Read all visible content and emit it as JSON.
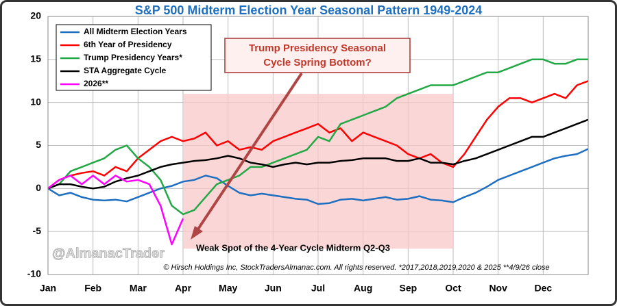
{
  "chart_data": {
    "type": "line",
    "title": "S&P 500 Midterm Election Year Seasonal Pattern 1949-2024",
    "x": [
      0,
      0.25,
      0.5,
      0.75,
      1,
      1.25,
      1.5,
      1.75,
      2,
      2.25,
      2.5,
      2.75,
      3,
      3.25,
      3.5,
      3.75,
      4,
      4.25,
      4.5,
      4.75,
      5,
      5.25,
      5.5,
      5.75,
      6,
      6.25,
      6.5,
      6.75,
      7,
      7.25,
      7.5,
      7.75,
      8,
      8.25,
      8.5,
      8.75,
      9,
      9.25,
      9.5,
      9.75,
      10,
      10.25,
      10.5,
      10.75,
      11,
      11.25,
      11.5,
      11.75,
      12
    ],
    "xlim": [
      0,
      12
    ],
    "xticks": [
      {
        "value": 0,
        "label": "Jan"
      },
      {
        "value": 1,
        "label": "Feb"
      },
      {
        "value": 2,
        "label": "Mar"
      },
      {
        "value": 3,
        "label": "Apr"
      },
      {
        "value": 4,
        "label": "May"
      },
      {
        "value": 5,
        "label": "Jun"
      },
      {
        "value": 6,
        "label": "Jul"
      },
      {
        "value": 7,
        "label": "Aug"
      },
      {
        "value": 8,
        "label": "Sep"
      },
      {
        "value": 9,
        "label": "Oct"
      },
      {
        "value": 10,
        "label": "Nov"
      },
      {
        "value": 11,
        "label": "Dec"
      }
    ],
    "ylim": [
      -10,
      20
    ],
    "yticks": [
      -10,
      -5,
      0,
      5,
      10,
      15,
      20
    ],
    "grid": true,
    "legend": "upper left",
    "series": [
      {
        "name": "All Midterm Election Years",
        "color": "#1f6fc0",
        "values": [
          0,
          -0.8,
          -0.5,
          -1.0,
          -1.3,
          -1.4,
          -1.3,
          -1.5,
          -1.0,
          -0.5,
          0.0,
          0.3,
          0.8,
          1.0,
          1.5,
          1.2,
          0.3,
          -0.5,
          -0.8,
          -0.6,
          -0.8,
          -1.0,
          -1.2,
          -1.3,
          -1.8,
          -1.7,
          -1.3,
          -1.2,
          -1.4,
          -1.2,
          -1.0,
          -1.3,
          -1.2,
          -0.9,
          -1.3,
          -1.4,
          -1.6,
          -1.0,
          -0.5,
          0.2,
          1.0,
          1.5,
          2.0,
          2.5,
          3.0,
          3.5,
          3.8,
          4.0,
          4.6
        ]
      },
      {
        "name": "6th Year of Presidency",
        "color": "#ff0000",
        "values": [
          0,
          1.0,
          1.5,
          1.8,
          2.0,
          1.5,
          2.5,
          2.0,
          3.5,
          4.5,
          5.5,
          6.0,
          5.5,
          5.8,
          6.5,
          5.0,
          5.5,
          4.5,
          4.8,
          4.5,
          5.5,
          6.0,
          6.5,
          7.0,
          7.5,
          6.5,
          7.0,
          5.5,
          6.5,
          6.0,
          5.5,
          5.0,
          4.0,
          3.5,
          4.0,
          3.0,
          2.5,
          4.0,
          6.0,
          8.0,
          9.5,
          10.5,
          10.5,
          10.0,
          10.5,
          11.0,
          10.5,
          12.0,
          12.5
        ]
      },
      {
        "name": "Trump Presidency Years*",
        "color": "#22a844",
        "values": [
          0,
          0.5,
          2.0,
          2.5,
          3.0,
          3.5,
          4.5,
          5.0,
          3.5,
          2.5,
          1.0,
          -2.0,
          -3.0,
          -2.5,
          -1.0,
          0.5,
          1.0,
          1.5,
          2.5,
          2.5,
          3.0,
          3.5,
          4.0,
          4.5,
          6.0,
          5.5,
          7.5,
          8.0,
          8.5,
          9.0,
          9.5,
          10.5,
          11.0,
          11.5,
          12.0,
          12.0,
          12.0,
          12.5,
          13.0,
          13.5,
          13.5,
          14.0,
          14.5,
          15.0,
          15.0,
          14.5,
          14.5,
          15.0,
          15.0
        ]
      },
      {
        "name": "STA Aggregate Cycle",
        "color": "#000000",
        "values": [
          0,
          0.5,
          0.5,
          0.2,
          0.0,
          0.2,
          0.8,
          1.2,
          1.5,
          2.0,
          2.5,
          2.8,
          3.0,
          3.2,
          3.3,
          3.5,
          3.8,
          3.5,
          3.0,
          2.8,
          2.5,
          2.8,
          3.0,
          2.8,
          3.0,
          3.0,
          3.2,
          3.3,
          3.5,
          3.5,
          3.5,
          3.2,
          3.2,
          3.5,
          3.0,
          3.0,
          2.8,
          3.2,
          3.5,
          4.0,
          4.5,
          5.0,
          5.5,
          6.0,
          6.0,
          6.5,
          7.0,
          7.5,
          8.0
        ]
      },
      {
        "name": "2026**",
        "color": "#ff00ff",
        "values": [
          0,
          1.0,
          1.5,
          0.5,
          1.5,
          0.5,
          1.5,
          0.8,
          1.0,
          0.5,
          -2.0,
          -6.5,
          -3.5,
          null,
          null,
          null,
          null,
          null,
          null,
          null,
          null,
          null,
          null,
          null,
          null,
          null,
          null,
          null,
          null,
          null,
          null,
          null,
          null,
          null,
          null,
          null,
          null,
          null,
          null,
          null,
          null,
          null,
          null,
          null,
          null,
          null,
          null,
          null,
          null
        ]
      }
    ],
    "highlight": {
      "x": [
        3,
        9
      ],
      "y": [
        -7,
        11
      ]
    },
    "callout": [
      "Trump Presidency Seasonal",
      "Cycle Spring Bottom?"
    ],
    "highlight_label": "Weak Spot of the 4-Year Cycle Midterm Q2-Q3",
    "watermark": "@AlmanacTrader",
    "footer": "© Hirsch Holdings Inc, StockTradersAlmanac.com. All rights reserved. *2017,2018,2019,2020 & 2025 **4/9/26 close"
  }
}
